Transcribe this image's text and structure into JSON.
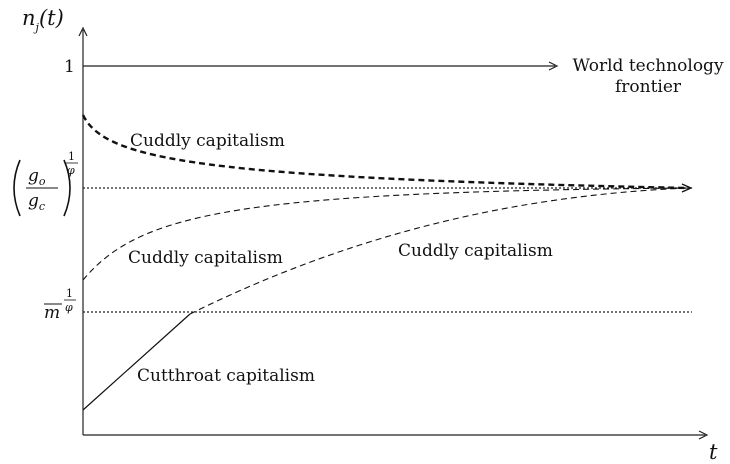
{
  "y_axis_label": {
    "base": "n",
    "sub": "j",
    "arg": "(t)"
  },
  "x_axis_label": "t",
  "levels": [
    {
      "label": "1"
    },
    {
      "numerator": {
        "base": "g",
        "sub": "o"
      },
      "denominator": {
        "base": "g",
        "sub": "c"
      },
      "exponent": {
        "num": "1",
        "den": "φ"
      }
    },
    {
      "base": "m",
      "exponent": {
        "num": "1",
        "den": "φ"
      }
    }
  ],
  "frontier_label": [
    "World technology",
    "frontier"
  ],
  "curve_labels": [
    "Cuddly capitalism",
    "Cuddly capitalism",
    "Cuddly capitalism",
    "Cutthroat capitalism"
  ]
}
